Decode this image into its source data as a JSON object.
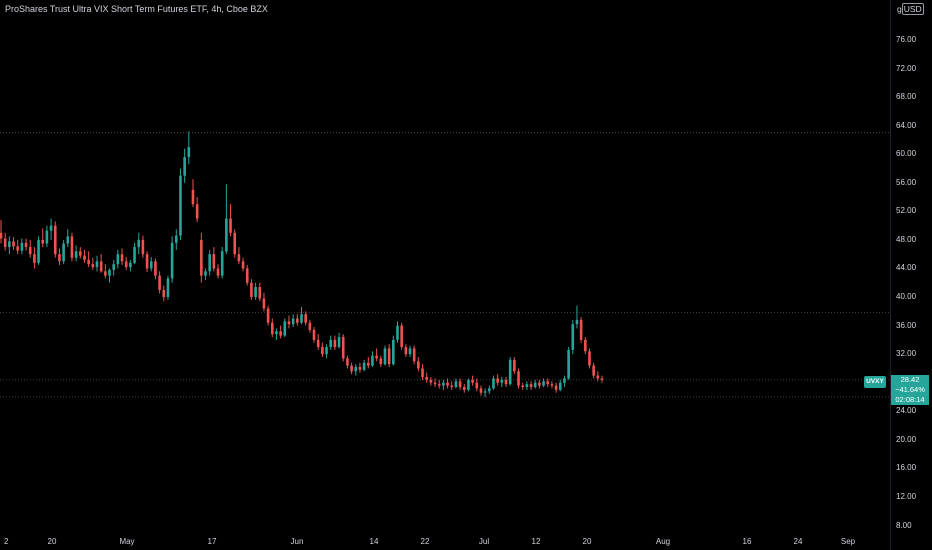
{
  "header": {
    "title": "ProShares Trust Ultra VIX Short Term Futures ETF, 4h, Cboe BZX",
    "currency_prefix": "g",
    "currency": "USD"
  },
  "price_label": {
    "symbol": "UVXY",
    "price": "28.42",
    "change": "−41.64%",
    "countdown": "02:08:14"
  },
  "colors": {
    "up": "#26a69a",
    "down": "#ef5350",
    "background": "#000000",
    "text": "#d1d4dc"
  },
  "chart_data": {
    "type": "candlestick",
    "title": "ProShares Trust Ultra VIX Short Term Futures ETF, 4h, Cboe BZX",
    "interval": "4h",
    "exchange": "Cboe BZX",
    "ylim": [
      6,
      78
    ],
    "y_ticks": [
      "76.00",
      "72.00",
      "68.00",
      "64.00",
      "60.00",
      "56.00",
      "52.00",
      "48.00",
      "44.00",
      "40.00",
      "36.00",
      "32.00",
      "28.00",
      "24.00",
      "20.00",
      "16.00",
      "12.00",
      "8.00"
    ],
    "x_ticks": [
      "2",
      "20",
      "May",
      "17",
      "Jun",
      "14",
      "22",
      "Jul",
      "12",
      "20",
      "Aug",
      "16",
      "24",
      "Sep"
    ],
    "horizontal_lines": [
      63.0,
      37.8,
      28.4,
      26.0
    ],
    "last_price": 28.42,
    "candles": [
      {
        "o": 49.0,
        "h": 50.8,
        "l": 47.5,
        "c": 48.2
      },
      {
        "o": 48.2,
        "h": 49.0,
        "l": 46.5,
        "c": 47.0
      },
      {
        "o": 47.0,
        "h": 48.5,
        "l": 46.0,
        "c": 47.8
      },
      {
        "o": 47.8,
        "h": 48.4,
        "l": 46.6,
        "c": 47.1
      },
      {
        "o": 47.1,
        "h": 48.0,
        "l": 46.0,
        "c": 46.5
      },
      {
        "o": 46.5,
        "h": 48.2,
        "l": 46.0,
        "c": 47.6
      },
      {
        "o": 47.6,
        "h": 48.2,
        "l": 46.5,
        "c": 47.0
      },
      {
        "o": 47.0,
        "h": 48.0,
        "l": 45.5,
        "c": 46.0
      },
      {
        "o": 46.0,
        "h": 47.0,
        "l": 44.0,
        "c": 44.8
      },
      {
        "o": 44.8,
        "h": 48.5,
        "l": 44.5,
        "c": 48.0
      },
      {
        "o": 48.0,
        "h": 49.6,
        "l": 47.0,
        "c": 47.5
      },
      {
        "o": 47.5,
        "h": 50.0,
        "l": 47.0,
        "c": 49.3
      },
      {
        "o": 49.3,
        "h": 51.0,
        "l": 48.0,
        "c": 50.0
      },
      {
        "o": 50.0,
        "h": 50.6,
        "l": 45.5,
        "c": 46.0
      },
      {
        "o": 46.0,
        "h": 46.8,
        "l": 44.5,
        "c": 45.0
      },
      {
        "o": 45.0,
        "h": 48.0,
        "l": 44.6,
        "c": 47.5
      },
      {
        "o": 47.5,
        "h": 49.5,
        "l": 47.0,
        "c": 48.5
      },
      {
        "o": 48.5,
        "h": 49.0,
        "l": 45.0,
        "c": 45.5
      },
      {
        "o": 45.5,
        "h": 47.2,
        "l": 45.0,
        "c": 46.4
      },
      {
        "o": 46.4,
        "h": 47.0,
        "l": 45.4,
        "c": 45.8
      },
      {
        "o": 45.8,
        "h": 46.6,
        "l": 44.8,
        "c": 45.2
      },
      {
        "o": 45.2,
        "h": 46.4,
        "l": 44.2,
        "c": 44.6
      },
      {
        "o": 44.6,
        "h": 45.5,
        "l": 43.8,
        "c": 44.2
      },
      {
        "o": 44.2,
        "h": 45.8,
        "l": 43.6,
        "c": 45.0
      },
      {
        "o": 45.0,
        "h": 46.0,
        "l": 43.4,
        "c": 43.6
      },
      {
        "o": 43.6,
        "h": 44.6,
        "l": 42.6,
        "c": 43.0
      },
      {
        "o": 43.0,
        "h": 44.0,
        "l": 42.0,
        "c": 43.8
      },
      {
        "o": 43.8,
        "h": 45.2,
        "l": 43.0,
        "c": 44.6
      },
      {
        "o": 44.6,
        "h": 46.6,
        "l": 44.0,
        "c": 46.0
      },
      {
        "o": 46.0,
        "h": 46.8,
        "l": 44.5,
        "c": 45.0
      },
      {
        "o": 45.0,
        "h": 45.6,
        "l": 43.8,
        "c": 44.2
      },
      {
        "o": 44.2,
        "h": 45.2,
        "l": 43.6,
        "c": 44.8
      },
      {
        "o": 44.8,
        "h": 47.6,
        "l": 44.6,
        "c": 47.0
      },
      {
        "o": 47.0,
        "h": 49.0,
        "l": 46.0,
        "c": 48.0
      },
      {
        "o": 48.0,
        "h": 48.6,
        "l": 45.5,
        "c": 46.0
      },
      {
        "o": 46.0,
        "h": 46.4,
        "l": 43.5,
        "c": 44.0
      },
      {
        "o": 44.0,
        "h": 45.6,
        "l": 43.6,
        "c": 45.0
      },
      {
        "o": 45.0,
        "h": 45.4,
        "l": 42.5,
        "c": 43.0
      },
      {
        "o": 43.0,
        "h": 43.6,
        "l": 40.5,
        "c": 41.0
      },
      {
        "o": 41.0,
        "h": 41.6,
        "l": 39.4,
        "c": 40.0
      },
      {
        "o": 40.0,
        "h": 43.0,
        "l": 39.6,
        "c": 42.6
      },
      {
        "o": 42.6,
        "h": 48.5,
        "l": 42.0,
        "c": 47.6
      },
      {
        "o": 47.6,
        "h": 49.5,
        "l": 46.6,
        "c": 48.6
      },
      {
        "o": 48.6,
        "h": 58.0,
        "l": 48.0,
        "c": 57.0
      },
      {
        "o": 57.0,
        "h": 60.8,
        "l": 56.0,
        "c": 59.6
      },
      {
        "o": 59.6,
        "h": 63.2,
        "l": 58.6,
        "c": 61.0
      },
      {
        "o": 55.0,
        "h": 56.5,
        "l": 52.6,
        "c": 53.0
      },
      {
        "o": 53.0,
        "h": 54.0,
        "l": 50.5,
        "c": 51.0
      },
      {
        "o": 48.0,
        "h": 49.0,
        "l": 42.0,
        "c": 43.0
      },
      {
        "o": 43.0,
        "h": 44.0,
        "l": 42.4,
        "c": 43.6
      },
      {
        "o": 43.6,
        "h": 46.6,
        "l": 43.0,
        "c": 46.0
      },
      {
        "o": 46.0,
        "h": 47.0,
        "l": 43.6,
        "c": 44.0
      },
      {
        "o": 44.0,
        "h": 44.6,
        "l": 42.6,
        "c": 43.0
      },
      {
        "o": 43.0,
        "h": 47.0,
        "l": 42.6,
        "c": 46.4
      },
      {
        "o": 46.4,
        "h": 55.8,
        "l": 46.0,
        "c": 51.0
      },
      {
        "o": 51.0,
        "h": 53.0,
        "l": 48.5,
        "c": 49.0
      },
      {
        "o": 49.0,
        "h": 49.5,
        "l": 45.5,
        "c": 46.0
      },
      {
        "o": 46.0,
        "h": 47.0,
        "l": 44.6,
        "c": 45.0
      },
      {
        "o": 45.0,
        "h": 45.5,
        "l": 43.6,
        "c": 44.0
      },
      {
        "o": 44.0,
        "h": 44.5,
        "l": 41.6,
        "c": 42.0
      },
      {
        "o": 42.0,
        "h": 42.5,
        "l": 39.6,
        "c": 40.0
      },
      {
        "o": 40.0,
        "h": 42.0,
        "l": 39.6,
        "c": 41.4
      },
      {
        "o": 41.4,
        "h": 42.0,
        "l": 39.4,
        "c": 39.8
      },
      {
        "o": 39.8,
        "h": 40.6,
        "l": 38.0,
        "c": 38.4
      },
      {
        "o": 38.4,
        "h": 38.8,
        "l": 36.0,
        "c": 36.4
      },
      {
        "o": 36.4,
        "h": 37.0,
        "l": 34.4,
        "c": 34.8
      },
      {
        "o": 34.8,
        "h": 35.6,
        "l": 34.0,
        "c": 35.2
      },
      {
        "o": 35.2,
        "h": 36.0,
        "l": 34.2,
        "c": 34.6
      },
      {
        "o": 34.6,
        "h": 37.0,
        "l": 34.4,
        "c": 36.6
      },
      {
        "o": 36.6,
        "h": 37.4,
        "l": 35.6,
        "c": 36.2
      },
      {
        "o": 36.2,
        "h": 37.6,
        "l": 35.8,
        "c": 37.0
      },
      {
        "o": 37.0,
        "h": 37.6,
        "l": 36.0,
        "c": 36.4
      },
      {
        "o": 36.4,
        "h": 38.6,
        "l": 36.2,
        "c": 37.6
      },
      {
        "o": 37.6,
        "h": 38.0,
        "l": 36.0,
        "c": 36.4
      },
      {
        "o": 36.4,
        "h": 36.8,
        "l": 35.0,
        "c": 35.4
      },
      {
        "o": 35.4,
        "h": 35.8,
        "l": 33.6,
        "c": 34.0
      },
      {
        "o": 34.0,
        "h": 34.8,
        "l": 32.6,
        "c": 33.0
      },
      {
        "o": 33.0,
        "h": 33.6,
        "l": 31.6,
        "c": 32.0
      },
      {
        "o": 32.0,
        "h": 33.4,
        "l": 31.4,
        "c": 33.0
      },
      {
        "o": 33.0,
        "h": 34.6,
        "l": 32.6,
        "c": 34.0
      },
      {
        "o": 34.0,
        "h": 34.6,
        "l": 32.6,
        "c": 33.0
      },
      {
        "o": 33.0,
        "h": 35.0,
        "l": 32.8,
        "c": 34.4
      },
      {
        "o": 34.4,
        "h": 34.8,
        "l": 31.0,
        "c": 31.4
      },
      {
        "o": 31.4,
        "h": 31.8,
        "l": 30.0,
        "c": 30.4
      },
      {
        "o": 30.4,
        "h": 30.8,
        "l": 29.2,
        "c": 29.6
      },
      {
        "o": 29.6,
        "h": 30.6,
        "l": 29.0,
        "c": 30.2
      },
      {
        "o": 30.2,
        "h": 30.8,
        "l": 29.4,
        "c": 29.8
      },
      {
        "o": 29.8,
        "h": 31.2,
        "l": 29.6,
        "c": 30.8
      },
      {
        "o": 30.8,
        "h": 31.6,
        "l": 30.0,
        "c": 30.4
      },
      {
        "o": 30.4,
        "h": 32.4,
        "l": 30.2,
        "c": 31.8
      },
      {
        "o": 31.8,
        "h": 32.8,
        "l": 31.0,
        "c": 31.4
      },
      {
        "o": 31.4,
        "h": 31.8,
        "l": 30.2,
        "c": 30.6
      },
      {
        "o": 30.6,
        "h": 33.2,
        "l": 30.4,
        "c": 32.8
      },
      {
        "o": 32.8,
        "h": 33.4,
        "l": 30.2,
        "c": 30.6
      },
      {
        "o": 30.6,
        "h": 34.6,
        "l": 30.4,
        "c": 34.0
      },
      {
        "o": 34.0,
        "h": 36.6,
        "l": 33.6,
        "c": 36.0
      },
      {
        "o": 36.0,
        "h": 36.4,
        "l": 32.6,
        "c": 33.0
      },
      {
        "o": 33.0,
        "h": 33.4,
        "l": 31.6,
        "c": 32.0
      },
      {
        "o": 32.0,
        "h": 33.2,
        "l": 31.6,
        "c": 32.8
      },
      {
        "o": 32.8,
        "h": 33.2,
        "l": 30.6,
        "c": 31.0
      },
      {
        "o": 31.0,
        "h": 31.6,
        "l": 29.6,
        "c": 30.0
      },
      {
        "o": 30.0,
        "h": 30.6,
        "l": 28.4,
        "c": 28.8
      },
      {
        "o": 28.8,
        "h": 29.4,
        "l": 28.0,
        "c": 28.4
      },
      {
        "o": 28.4,
        "h": 28.8,
        "l": 27.6,
        "c": 28.0
      },
      {
        "o": 28.0,
        "h": 28.6,
        "l": 27.4,
        "c": 27.8
      },
      {
        "o": 27.8,
        "h": 28.4,
        "l": 27.2,
        "c": 27.6
      },
      {
        "o": 27.6,
        "h": 28.4,
        "l": 27.0,
        "c": 28.0
      },
      {
        "o": 28.0,
        "h": 28.6,
        "l": 27.2,
        "c": 27.6
      },
      {
        "o": 27.6,
        "h": 28.2,
        "l": 27.0,
        "c": 27.4
      },
      {
        "o": 27.4,
        "h": 28.6,
        "l": 27.2,
        "c": 28.2
      },
      {
        "o": 28.2,
        "h": 28.6,
        "l": 27.0,
        "c": 27.4
      },
      {
        "o": 27.4,
        "h": 27.8,
        "l": 26.6,
        "c": 27.0
      },
      {
        "o": 27.0,
        "h": 28.6,
        "l": 26.8,
        "c": 28.4
      },
      {
        "o": 28.4,
        "h": 29.0,
        "l": 27.6,
        "c": 28.0
      },
      {
        "o": 28.0,
        "h": 28.6,
        "l": 26.8,
        "c": 27.2
      },
      {
        "o": 27.2,
        "h": 27.6,
        "l": 26.2,
        "c": 26.6
      },
      {
        "o": 26.6,
        "h": 27.2,
        "l": 26.0,
        "c": 26.8
      },
      {
        "o": 26.8,
        "h": 27.6,
        "l": 26.4,
        "c": 27.2
      },
      {
        "o": 27.2,
        "h": 29.0,
        "l": 27.0,
        "c": 28.6
      },
      {
        "o": 28.6,
        "h": 29.2,
        "l": 27.6,
        "c": 28.0
      },
      {
        "o": 28.0,
        "h": 28.8,
        "l": 27.4,
        "c": 28.4
      },
      {
        "o": 28.4,
        "h": 28.8,
        "l": 27.4,
        "c": 27.8
      },
      {
        "o": 27.8,
        "h": 31.6,
        "l": 27.6,
        "c": 31.2
      },
      {
        "o": 31.2,
        "h": 31.6,
        "l": 29.2,
        "c": 29.6
      },
      {
        "o": 29.6,
        "h": 30.0,
        "l": 27.2,
        "c": 27.6
      },
      {
        "o": 27.6,
        "h": 28.0,
        "l": 27.0,
        "c": 27.4
      },
      {
        "o": 27.4,
        "h": 28.2,
        "l": 27.0,
        "c": 27.8
      },
      {
        "o": 27.8,
        "h": 28.2,
        "l": 27.0,
        "c": 27.4
      },
      {
        "o": 27.4,
        "h": 28.4,
        "l": 27.2,
        "c": 28.0
      },
      {
        "o": 28.0,
        "h": 28.4,
        "l": 27.2,
        "c": 27.6
      },
      {
        "o": 27.6,
        "h": 28.6,
        "l": 27.4,
        "c": 28.2
      },
      {
        "o": 28.2,
        "h": 28.6,
        "l": 27.4,
        "c": 27.8
      },
      {
        "o": 27.8,
        "h": 28.2,
        "l": 27.2,
        "c": 27.6
      },
      {
        "o": 27.6,
        "h": 28.0,
        "l": 26.6,
        "c": 27.0
      },
      {
        "o": 27.0,
        "h": 28.4,
        "l": 26.8,
        "c": 28.0
      },
      {
        "o": 28.0,
        "h": 29.0,
        "l": 27.4,
        "c": 28.6
      },
      {
        "o": 28.6,
        "h": 33.0,
        "l": 28.4,
        "c": 32.6
      },
      {
        "o": 32.6,
        "h": 36.8,
        "l": 32.0,
        "c": 36.2
      },
      {
        "o": 36.2,
        "h": 38.8,
        "l": 35.6,
        "c": 36.8
      },
      {
        "o": 36.8,
        "h": 37.2,
        "l": 33.6,
        "c": 34.0
      },
      {
        "o": 34.0,
        "h": 34.4,
        "l": 32.0,
        "c": 32.4
      },
      {
        "o": 32.4,
        "h": 32.8,
        "l": 30.0,
        "c": 30.4
      },
      {
        "o": 30.4,
        "h": 30.8,
        "l": 28.6,
        "c": 29.0
      },
      {
        "o": 29.0,
        "h": 29.6,
        "l": 28.2,
        "c": 28.6
      },
      {
        "o": 28.6,
        "h": 29.0,
        "l": 28.0,
        "c": 28.42
      }
    ]
  }
}
